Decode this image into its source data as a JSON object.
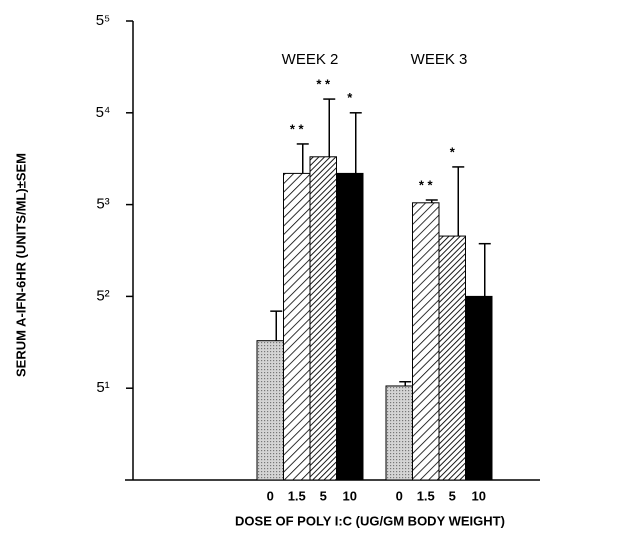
{
  "chart_data": {
    "type": "bar",
    "ylabel": "SERUM  A-IFN-6HR  (UNITS/ML)±SEM",
    "xlabel": "DOSE OF POLY I:C (UG/GM BODY WEIGHT)",
    "categories": [
      "WEEK 2",
      "WEEK 3"
    ],
    "log_base": 5,
    "ylim": [
      1,
      3125
    ],
    "yticks": [
      {
        "value": 5,
        "label": "5¹"
      },
      {
        "value": 25,
        "label": "5²"
      },
      {
        "value": 125,
        "label": "5³"
      },
      {
        "value": 625,
        "label": "5⁴"
      },
      {
        "value": 3125,
        "label": "5⁵"
      }
    ],
    "series": [
      {
        "name": "0",
        "color": "#b8b8b8",
        "fill": "dots",
        "values": [
          11.5,
          5.2
        ],
        "errors": [
          7.8,
          0.4
        ]
      },
      {
        "name": "1.5",
        "color": "#000000",
        "fill": "hatch",
        "values": [
          216,
          129
        ],
        "errors": [
          146,
          6.5
        ]
      },
      {
        "name": "5",
        "color": "#000000",
        "fill": "dense-hatch",
        "values": [
          289,
          72
        ],
        "errors": [
          506,
          170
        ]
      },
      {
        "name": "10",
        "color": "#000000",
        "fill": "solid",
        "values": [
          216,
          25
        ],
        "errors": [
          409,
          38
        ]
      }
    ],
    "annotations": [
      {
        "text": "* *",
        "series": 1,
        "category": 0
      },
      {
        "text": "* *",
        "series": 2,
        "category": 0
      },
      {
        "text": "*",
        "series": 3,
        "category": 0
      },
      {
        "text": "* *",
        "series": 1,
        "category": 1
      },
      {
        "text": "*",
        "series": 2,
        "category": 1
      }
    ]
  }
}
